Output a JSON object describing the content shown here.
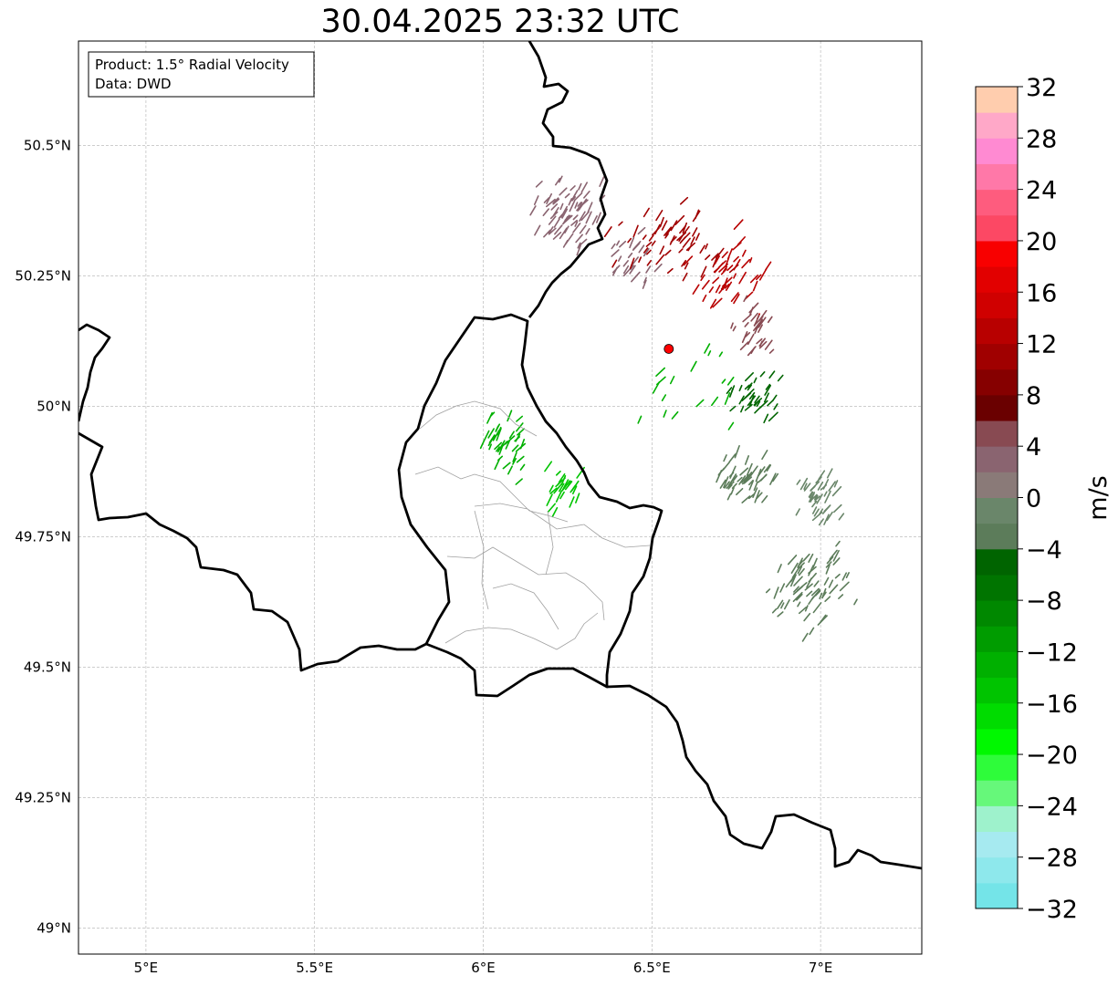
{
  "title": "30.04.2025 23:32 UTC",
  "info_box": {
    "product": "Product: 1.5° Radial Velocity",
    "data": "Data: DWD"
  },
  "map": {
    "lon_range": [
      4.8,
      7.3
    ],
    "lat_range": [
      48.95,
      50.7
    ],
    "lon_ticks": [
      {
        "value": 5.0,
        "label": "5°E"
      },
      {
        "value": 5.5,
        "label": "5.5°E"
      },
      {
        "value": 6.0,
        "label": "6°E"
      },
      {
        "value": 6.5,
        "label": "6.5°E"
      },
      {
        "value": 7.0,
        "label": "7°E"
      }
    ],
    "lat_ticks": [
      {
        "value": 49.0,
        "label": "49°N"
      },
      {
        "value": 49.25,
        "label": "49.25°N"
      },
      {
        "value": 49.5,
        "label": "49.5°N"
      },
      {
        "value": 49.75,
        "label": "49.75°N"
      },
      {
        "value": 50.0,
        "label": "50°N"
      },
      {
        "value": 50.25,
        "label": "50.25°N"
      },
      {
        "value": 50.5,
        "label": "50.5°N"
      }
    ],
    "radar_site": {
      "lon": 6.55,
      "lat": 50.11,
      "color": "#ff0000"
    },
    "grid": true
  },
  "colorbar": {
    "unit": "m/s",
    "min": -32,
    "max": 32,
    "tick_labels": [
      {
        "value": 32,
        "label": "32"
      },
      {
        "value": 28,
        "label": "28"
      },
      {
        "value": 24,
        "label": "24"
      },
      {
        "value": 20,
        "label": "20"
      },
      {
        "value": 16,
        "label": "16"
      },
      {
        "value": 12,
        "label": "12"
      },
      {
        "value": 8,
        "label": "8"
      },
      {
        "value": 4,
        "label": "4"
      },
      {
        "value": 0,
        "label": "0"
      },
      {
        "value": -4,
        "label": "−4"
      },
      {
        "value": -8,
        "label": "−8"
      },
      {
        "value": -12,
        "label": "−12"
      },
      {
        "value": -16,
        "label": "−16"
      },
      {
        "value": -20,
        "label": "−20"
      },
      {
        "value": -24,
        "label": "−24"
      },
      {
        "value": -28,
        "label": "−28"
      },
      {
        "value": -32,
        "label": "−32"
      }
    ],
    "colors_bottom_to_top": [
      "#74e4e8",
      "#8ee8ec",
      "#a6eaf0",
      "#9ef2cc",
      "#66f87a",
      "#2efc3a",
      "#00f800",
      "#00dc00",
      "#00c400",
      "#00b000",
      "#009c00",
      "#008800",
      "#007400",
      "#006400",
      "#5c7c5a",
      "#6a866a",
      "#8a7a78",
      "#8a6470",
      "#884a52",
      "#6a0000",
      "#860000",
      "#a00000",
      "#b80000",
      "#d00000",
      "#e20000",
      "#f80000",
      "#fc4864",
      "#fe5c7e",
      "#ff78a8",
      "#ff8ad2",
      "#ffa8c8",
      "#ffcdae"
    ]
  },
  "radar_clusters": [
    {
      "lon": 6.25,
      "lat": 50.36,
      "color": "#8a6470",
      "count": 70,
      "spread": [
        0.09,
        0.06
      ]
    },
    {
      "lon": 6.42,
      "lat": 50.28,
      "color": "#8a6470",
      "count": 25,
      "spread": [
        0.06,
        0.05
      ]
    },
    {
      "lon": 6.56,
      "lat": 50.31,
      "color": "#a00000",
      "count": 60,
      "spread": [
        0.14,
        0.06
      ]
    },
    {
      "lon": 6.73,
      "lat": 50.25,
      "color": "#b80000",
      "count": 45,
      "spread": [
        0.1,
        0.07
      ]
    },
    {
      "lon": 6.8,
      "lat": 50.14,
      "color": "#884a52",
      "count": 30,
      "spread": [
        0.06,
        0.05
      ]
    },
    {
      "lon": 6.8,
      "lat": 50.01,
      "color": "#006400",
      "count": 35,
      "spread": [
        0.07,
        0.05
      ]
    },
    {
      "lon": 6.05,
      "lat": 49.92,
      "color": "#00b000",
      "count": 40,
      "spread": [
        0.06,
        0.06
      ]
    },
    {
      "lon": 6.22,
      "lat": 49.83,
      "color": "#00c400",
      "count": 25,
      "spread": [
        0.05,
        0.04
      ]
    },
    {
      "lon": 6.77,
      "lat": 49.85,
      "color": "#5c7c5a",
      "count": 50,
      "spread": [
        0.08,
        0.04
      ]
    },
    {
      "lon": 6.99,
      "lat": 49.82,
      "color": "#6a866a",
      "count": 40,
      "spread": [
        0.06,
        0.04
      ]
    },
    {
      "lon": 6.97,
      "lat": 49.65,
      "color": "#5c7c5a",
      "count": 70,
      "spread": [
        0.1,
        0.07
      ]
    },
    {
      "lon": 6.6,
      "lat": 50.02,
      "color": "#00b000",
      "count": 18,
      "spread": [
        0.12,
        0.08
      ]
    }
  ]
}
